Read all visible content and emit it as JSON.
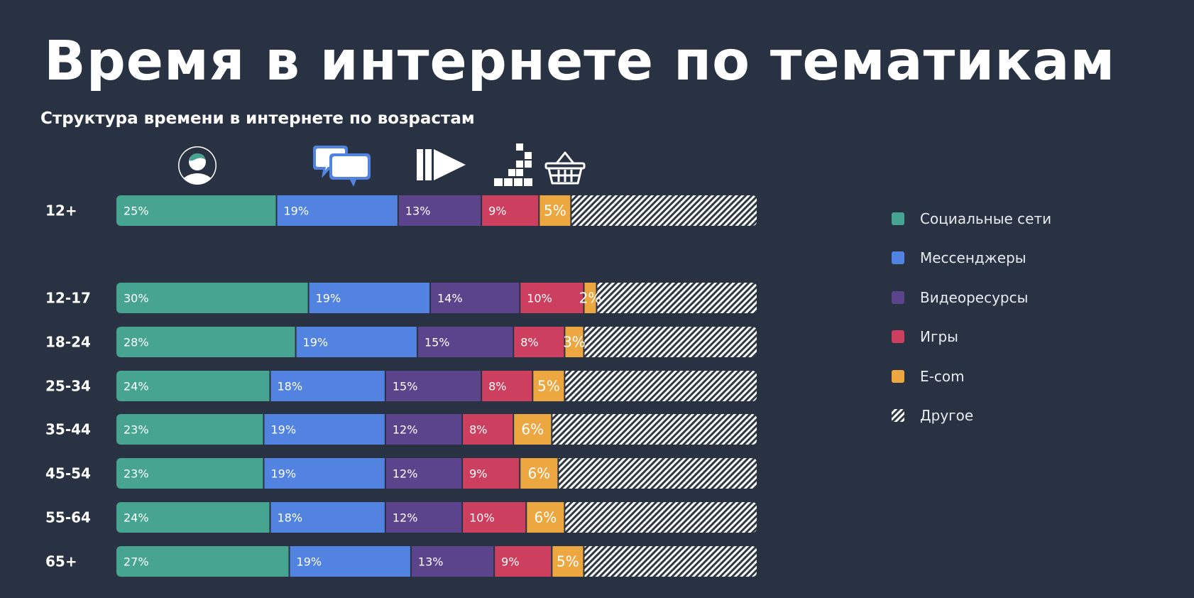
{
  "title": "Время в интернете по тематикам",
  "subtitle": "Структура времени в интернете по возрастам",
  "category_icons": [
    "social-user-icon",
    "chat-bubbles-icon",
    "video-play-icon",
    "games-blocks-icon",
    "shopping-basket-icon"
  ],
  "colors": {
    "background": "#283242",
    "social": "#46a490",
    "messengers": "#5383e0",
    "video": "#5c448d",
    "games": "#cc3f5e",
    "ecom": "#eda741",
    "other_stripe": "#c9ced6"
  },
  "chart_data": {
    "type": "bar",
    "stacked": true,
    "orientation": "horizontal",
    "title": "Время в интернете по тематикам",
    "subtitle": "Структура времени в интернете по возрастам",
    "categories": [
      "12+",
      "12-17",
      "18-24",
      "25-34",
      "35-44",
      "45-54",
      "55-64",
      "65+"
    ],
    "series": [
      {
        "name": "Социальные сети",
        "key": "social",
        "values": [
          25,
          30,
          28,
          24,
          23,
          23,
          24,
          27
        ]
      },
      {
        "name": "Мессенджеры",
        "key": "messengers",
        "values": [
          19,
          19,
          19,
          18,
          19,
          19,
          18,
          19
        ]
      },
      {
        "name": "Видеоресурсы",
        "key": "video",
        "values": [
          13,
          14,
          15,
          15,
          12,
          12,
          12,
          13
        ]
      },
      {
        "name": "Игры",
        "key": "games",
        "values": [
          9,
          10,
          8,
          8,
          8,
          9,
          10,
          9
        ]
      },
      {
        "name": "E-com",
        "key": "ecom",
        "values": [
          5,
          2,
          3,
          5,
          6,
          6,
          6,
          5
        ]
      },
      {
        "name": "Другое",
        "key": "other",
        "values": [
          29,
          25,
          27,
          30,
          32,
          31,
          30,
          27
        ],
        "labeled": false,
        "pattern": "hatched"
      }
    ],
    "value_suffix": "%",
    "xlim": [
      0,
      100
    ],
    "legend_position": "right"
  }
}
